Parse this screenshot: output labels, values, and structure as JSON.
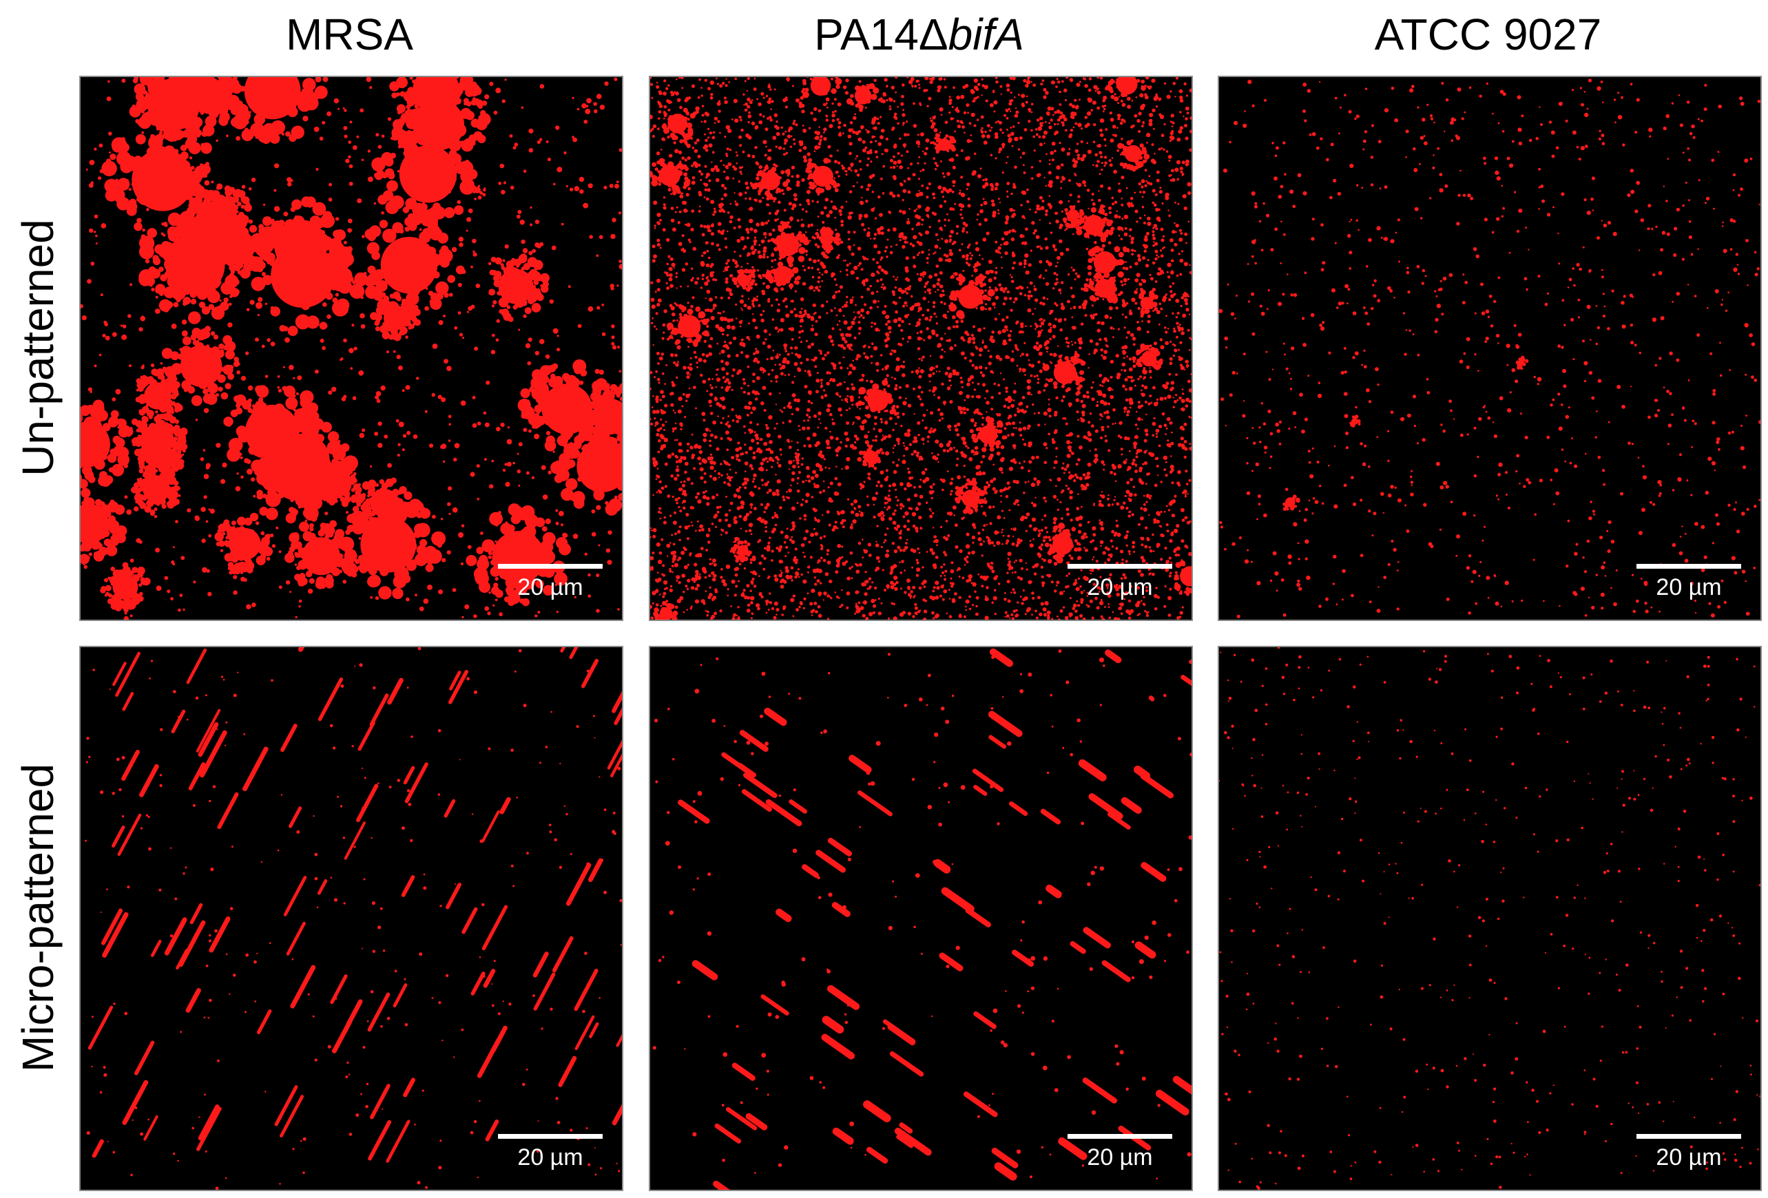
{
  "columns": [
    {
      "name": "MRSA",
      "name_suffix": ""
    },
    {
      "name": "PA14Δ",
      "name_suffix": "bifA"
    },
    {
      "name": "ATCC 9027",
      "name_suffix": ""
    }
  ],
  "rows": [
    {
      "label": "Un-patterned"
    },
    {
      "label": "Micro-patterned"
    }
  ],
  "panels": [
    {
      "row": 0,
      "col": 0,
      "scale_label": "20 µm",
      "fluorescence": "#ff1a1a",
      "coverage": "dense large clusters"
    },
    {
      "row": 0,
      "col": 1,
      "scale_label": "20 µm",
      "fluorescence": "#ff1a1a",
      "coverage": "dense fine speckle with aggregates"
    },
    {
      "row": 0,
      "col": 2,
      "scale_label": "20 µm",
      "fluorescence": "#ff1a1a",
      "coverage": "sparse scattered cells"
    },
    {
      "row": 1,
      "col": 0,
      "scale_label": "20 µm",
      "fluorescence": "#ff1a1a",
      "coverage": "sparse diagonal streaks"
    },
    {
      "row": 1,
      "col": 1,
      "scale_label": "20 µm",
      "fluorescence": "#ff1a1a",
      "coverage": "sparse diagonal streaks"
    },
    {
      "row": 1,
      "col": 2,
      "scale_label": "20 µm",
      "fluorescence": "#ff1a1a",
      "coverage": "very sparse dots"
    }
  ]
}
